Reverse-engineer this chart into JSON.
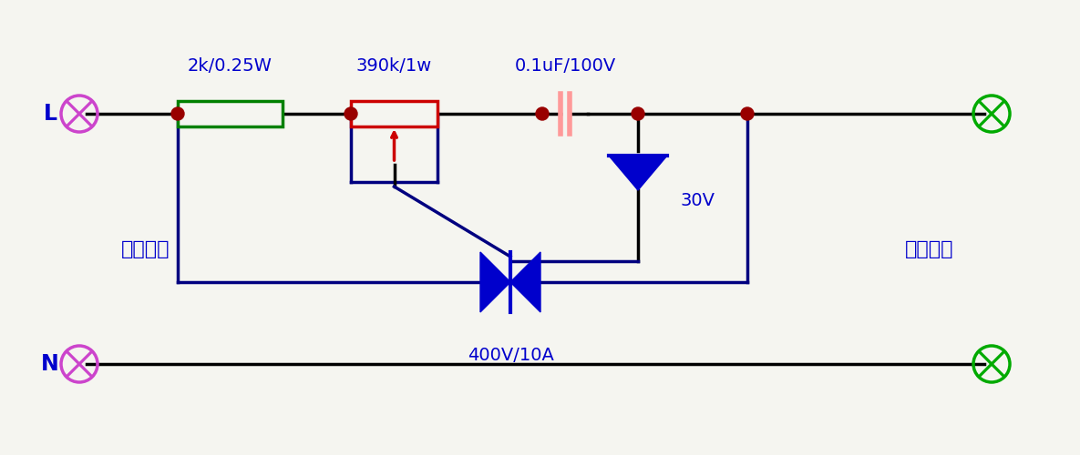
{
  "bg_color": "#f5f5f0",
  "line_dark": "#000080",
  "line_black": "#000000",
  "color_green": "#008000",
  "color_red": "#cc0000",
  "color_pink": "#ff9999",
  "color_blue": "#0000cc",
  "color_node": "#990000",
  "color_term_left": "#cc44cc",
  "color_term_right": "#00aa00",
  "color_label": "#0000cc",
  "label_L": "L",
  "label_N": "N",
  "label_power": "电源输入",
  "label_load": "阻性负载",
  "label_r1": "2k/0.25W",
  "label_r2": "390k/1w",
  "label_cap": "0.1uF/100V",
  "label_zener": "30V",
  "label_triac": "400V/10A",
  "figsize": [
    11.85,
    5.0
  ],
  "dpi": 100
}
